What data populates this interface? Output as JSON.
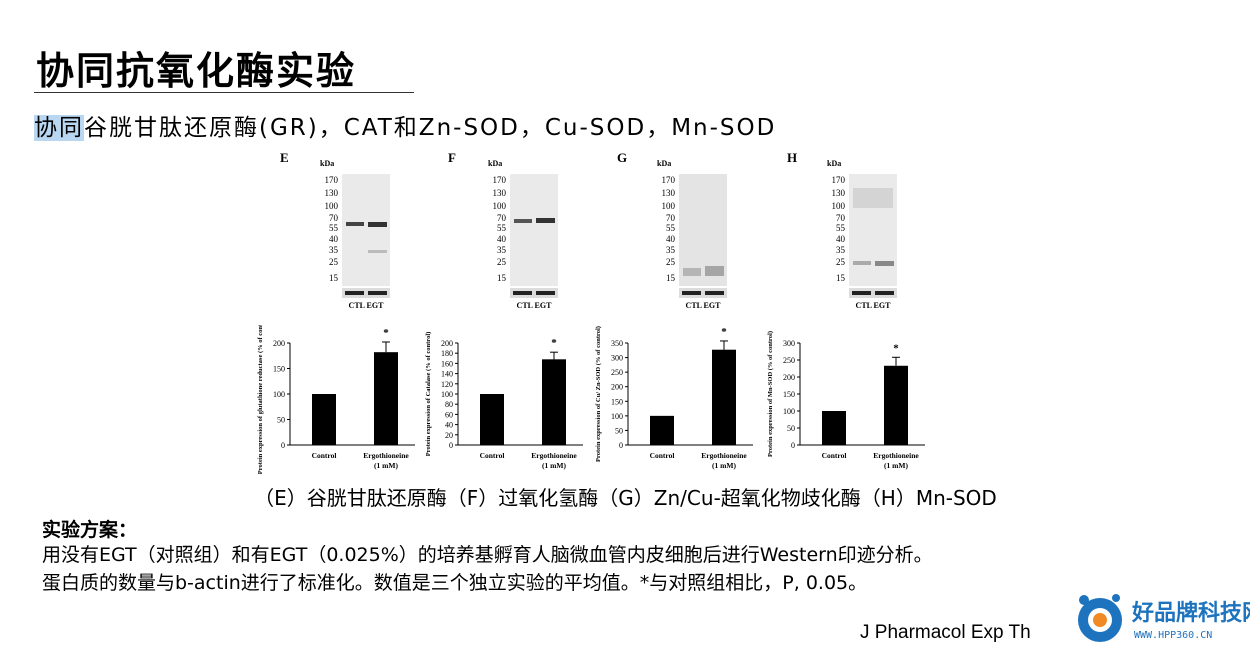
{
  "slide": {
    "title": "协同抗氧化酶实验",
    "subtitle_highlight": "协同",
    "subtitle_rest": "谷胱甘肽还原酶(GR)，CAT和Zn-SOD，Cu-SOD，Mn-SOD",
    "caption": "（E）谷胱甘肽还原酶（F）过氧化氢酶（G）Zn/Cu-超氧化物歧化酶（H）Mn-SOD",
    "method_heading": "实验方案：",
    "method_line1": "用没有EGT（对照组）和有EGT（0.025%）的培养基孵育人脑微血管内皮细胞后进行Western印迹分析。",
    "method_line2": "蛋白质的数量与b-actin进行了标准化。数值是三个独立实验的平均值。*与对照组相比，P, 0.05。",
    "citation": "J Pharmacol Exp Th",
    "logo_text": "好品牌科技网",
    "logo_url": "WWW.HPP360.CN"
  },
  "blots": {
    "kda_label": "kDa",
    "lane_labels": "CTL EGT",
    "panels": [
      {
        "letter": "E",
        "markers": [
          "170",
          "130",
          "100",
          "70",
          "55",
          "40",
          "35",
          "25",
          "15"
        ]
      },
      {
        "letter": "F",
        "markers": [
          "170",
          "130",
          "100",
          "70",
          "55",
          "40",
          "35",
          "25",
          "15"
        ]
      },
      {
        "letter": "G",
        "markers": [
          "170",
          "130",
          "100",
          "70",
          "55",
          "40",
          "35",
          "25",
          "15"
        ]
      },
      {
        "letter": "H",
        "markers": [
          "170",
          "130",
          "100",
          "70",
          "55",
          "40",
          "35",
          "25",
          "15"
        ]
      }
    ]
  },
  "chart_data": [
    {
      "type": "bar",
      "categories": [
        "Control",
        "Ergothioneine"
      ],
      "category_sublabels": [
        "",
        "(1 mM)"
      ],
      "values": [
        100,
        182
      ],
      "errors": [
        0,
        20
      ],
      "significance": [
        "",
        "*"
      ],
      "ylabel": "Protein expression of glutathione reductase (% of control)",
      "ylim": [
        0,
        200
      ],
      "yticks": [
        0,
        50,
        100,
        150,
        200
      ]
    },
    {
      "type": "bar",
      "categories": [
        "Control",
        "Ergothioneine"
      ],
      "category_sublabels": [
        "",
        "(1 mM)"
      ],
      "values": [
        100,
        168
      ],
      "errors": [
        0,
        14
      ],
      "significance": [
        "",
        "*"
      ],
      "ylabel": "Protein expression of Catalase (% of control)",
      "ylim": [
        0,
        200
      ],
      "yticks": [
        0,
        20,
        40,
        60,
        80,
        100,
        120,
        140,
        160,
        180,
        200
      ]
    },
    {
      "type": "bar",
      "categories": [
        "Control",
        "Ergothioneine"
      ],
      "category_sublabels": [
        "",
        "(1 mM)"
      ],
      "values": [
        100,
        327
      ],
      "errors": [
        0,
        30
      ],
      "significance": [
        "",
        "*"
      ],
      "ylabel": "Protein expression of Cu/ Zn-SOD (% of control)",
      "ylim": [
        0,
        350
      ],
      "yticks": [
        0,
        50,
        100,
        150,
        200,
        250,
        300,
        350
      ]
    },
    {
      "type": "bar",
      "categories": [
        "Control",
        "Ergothioneine"
      ],
      "category_sublabels": [
        "",
        "(1 mM)"
      ],
      "values": [
        100,
        233
      ],
      "errors": [
        0,
        25
      ],
      "significance": [
        "",
        "*"
      ],
      "ylabel": "Protein expression of Mn-SOD (% of control)",
      "ylim": [
        0,
        300
      ],
      "yticks": [
        0,
        50,
        100,
        150,
        200,
        250,
        300
      ]
    }
  ]
}
